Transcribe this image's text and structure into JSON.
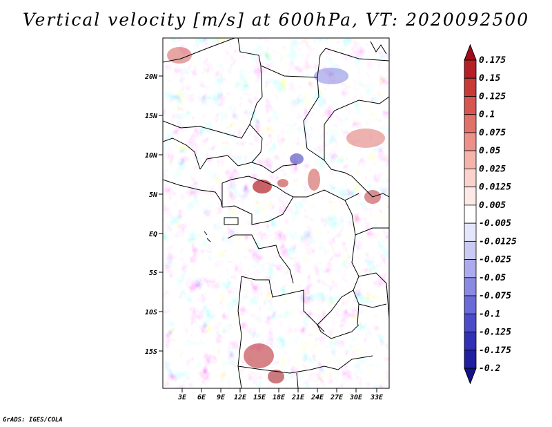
{
  "title": "Vertical velocity [m/s] at 600hPa, VT: 2020092500",
  "credit": "GrADS: IGES/COLA",
  "map": {
    "variable": "Vertical velocity",
    "units": "m/s",
    "level": "600hPa",
    "valid_time": "2020092500",
    "lat_ticks": [
      "20N",
      "15N",
      "10N",
      "5N",
      "EQ",
      "5S",
      "10S",
      "15S"
    ],
    "lon_ticks": [
      "3E",
      "6E",
      "9E",
      "12E",
      "15E",
      "18E",
      "21E",
      "24E",
      "27E",
      "30E",
      "33E"
    ],
    "lat_range": [
      -19.5,
      24.5
    ],
    "lon_range": [
      0,
      35
    ]
  },
  "colorbar": {
    "levels": [
      "0.175",
      "0.15",
      "0.125",
      "0.1",
      "0.075",
      "0.05",
      "0.025",
      "0.0125",
      "0.005",
      "-0.005",
      "-0.0125",
      "-0.025",
      "-0.05",
      "-0.075",
      "-0.1",
      "-0.125",
      "-0.175",
      "-0.2"
    ],
    "colors": [
      "#a00d18",
      "#b51f25",
      "#c83a36",
      "#d85550",
      "#e2716a",
      "#ec9189",
      "#f4b3ab",
      "#fad3cd",
      "#fdeae7",
      "#ffffff",
      "#e5e5fb",
      "#cacaf5",
      "#ababee",
      "#8a8ae4",
      "#6a6ad9",
      "#4c4ccb",
      "#3030b8",
      "#1f1fa0",
      "#12128a"
    ],
    "positive_color": "#e06c5e",
    "negative_color": "#6e6ee2"
  }
}
